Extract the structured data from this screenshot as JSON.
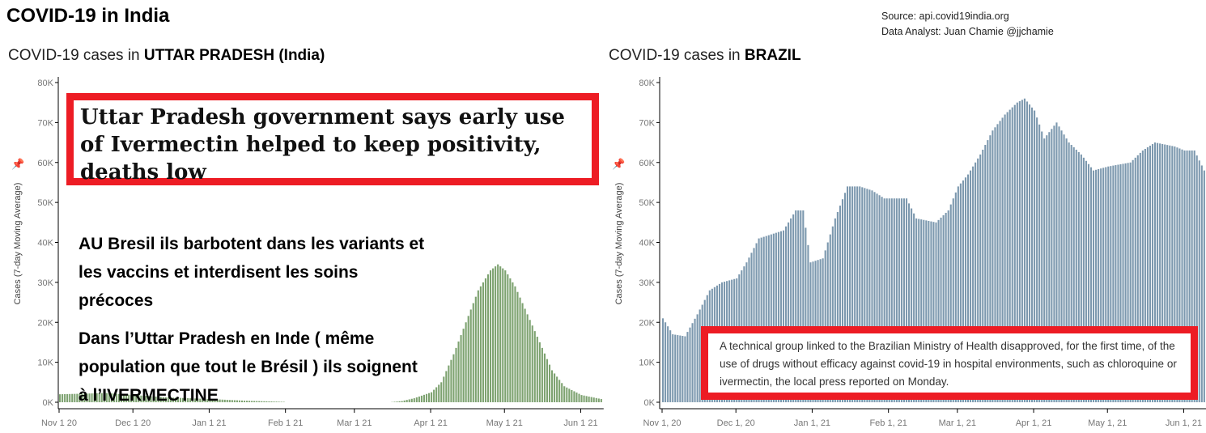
{
  "title": "COVID-19 in India",
  "source": {
    "line1": "Source: api.covid19india.org",
    "line2": "Data Analyst:  Juan Chamie @jjchamie"
  },
  "colors": {
    "india_bars": "#7da270",
    "brazil_bars": "#7c98ae",
    "annotation_border": "#ed1c24"
  },
  "annotations": {
    "up_headline": "Uttar Pradesh government says early use of Ivermectin helped to keep positivity, deaths low",
    "french_1": "AU Bresil ils barbotent dans les variants et les vaccins et interdisent les soins précoces",
    "french_2": "Dans l’Uttar Pradesh en Inde ( même population que tout le Brésil ) ils soignent à l’IVERMECTINE",
    "brazil_note": "A technical group linked to the Brazilian Ministry of Health disapproved, for the first time, of the use of drugs without efficacy against covid-19 in hospital environments, such as chloroquine or ivermectin, the local press reported on Monday."
  },
  "chart_data": [
    {
      "type": "bar",
      "title_prefix": "COVID-19 cases in ",
      "title_bold": "UTTAR PRADESH (India)",
      "ylabel": "Cases (7-day Moving Average)",
      "ylim": [
        0,
        80000
      ],
      "yticks": [
        "0K",
        "10K",
        "20K",
        "30K",
        "40K",
        "50K",
        "60K",
        "70K",
        "80K"
      ],
      "xticks": [
        "Nov 1 20",
        "Dec 1 20",
        "Jan 1 21",
        "Feb 1 21",
        "Mar 1 21",
        "Apr 1 21",
        "May 1 21",
        "Jun 1 21"
      ],
      "x_range": [
        "2020-11-01",
        "2021-06-09"
      ],
      "points": [
        [
          "2020-11-01",
          2000
        ],
        [
          "2020-11-20",
          2300
        ],
        [
          "2020-12-01",
          1800
        ],
        [
          "2020-12-15",
          1200
        ],
        [
          "2021-01-01",
          800
        ],
        [
          "2021-01-15",
          400
        ],
        [
          "2021-01-31",
          100
        ],
        [
          "2021-02-01",
          0
        ],
        [
          "2021-03-15",
          0
        ],
        [
          "2021-03-20",
          300
        ],
        [
          "2021-03-25",
          1000
        ],
        [
          "2021-04-01",
          2500
        ],
        [
          "2021-04-05",
          5000
        ],
        [
          "2021-04-10",
          12000
        ],
        [
          "2021-04-15",
          20000
        ],
        [
          "2021-04-20",
          28000
        ],
        [
          "2021-04-25",
          33000
        ],
        [
          "2021-04-28",
          34500
        ],
        [
          "2021-05-01",
          33000
        ],
        [
          "2021-05-05",
          29000
        ],
        [
          "2021-05-10",
          22000
        ],
        [
          "2021-05-15",
          15000
        ],
        [
          "2021-05-20",
          8000
        ],
        [
          "2021-05-25",
          4000
        ],
        [
          "2021-06-01",
          1800
        ],
        [
          "2021-06-09",
          800
        ]
      ]
    },
    {
      "type": "bar",
      "title_prefix": "COVID-19 cases in ",
      "title_bold": "BRAZIL",
      "ylabel": "Cases (7-day Moving Average)",
      "ylim": [
        0,
        80000
      ],
      "yticks": [
        "0K",
        "10K",
        "20K",
        "30K",
        "40K",
        "50K",
        "60K",
        "70K",
        "80K"
      ],
      "xticks": [
        "Nov 1, 20",
        "Dec 1, 20",
        "Jan 1, 21",
        "Feb 1, 21",
        "Mar 1, 21",
        "Apr 1, 21",
        "May 1, 21",
        "Jun 1, 21"
      ],
      "x_range": [
        "2020-11-01",
        "2021-06-09"
      ],
      "points": [
        [
          "2020-11-01",
          21000
        ],
        [
          "2020-11-05",
          17000
        ],
        [
          "2020-11-10",
          16500
        ],
        [
          "2020-11-15",
          22000
        ],
        [
          "2020-11-20",
          28000
        ],
        [
          "2020-11-25",
          30000
        ],
        [
          "2020-12-01",
          31000
        ],
        [
          "2020-12-05",
          35000
        ],
        [
          "2020-12-10",
          41000
        ],
        [
          "2020-12-15",
          42000
        ],
        [
          "2020-12-20",
          43000
        ],
        [
          "2020-12-25",
          48000
        ],
        [
          "2020-12-28",
          48000
        ],
        [
          "2020-12-31",
          35000
        ],
        [
          "2021-01-05",
          36000
        ],
        [
          "2021-01-10",
          46000
        ],
        [
          "2021-01-15",
          54000
        ],
        [
          "2021-01-20",
          54000
        ],
        [
          "2021-01-25",
          53000
        ],
        [
          "2021-01-30",
          51000
        ],
        [
          "2021-02-08",
          51000
        ],
        [
          "2021-02-12",
          46000
        ],
        [
          "2021-02-20",
          45000
        ],
        [
          "2021-02-25",
          48000
        ],
        [
          "2021-03-01",
          54000
        ],
        [
          "2021-03-05",
          57000
        ],
        [
          "2021-03-10",
          62000
        ],
        [
          "2021-03-15",
          68000
        ],
        [
          "2021-03-20",
          72000
        ],
        [
          "2021-03-25",
          75000
        ],
        [
          "2021-03-28",
          76000
        ],
        [
          "2021-04-01",
          73000
        ],
        [
          "2021-04-05",
          66000
        ],
        [
          "2021-04-10",
          70000
        ],
        [
          "2021-04-15",
          65000
        ],
        [
          "2021-04-20",
          62000
        ],
        [
          "2021-04-25",
          58000
        ],
        [
          "2021-05-01",
          59000
        ],
        [
          "2021-05-10",
          60000
        ],
        [
          "2021-05-15",
          63000
        ],
        [
          "2021-05-20",
          65000
        ],
        [
          "2021-05-28",
          64000
        ],
        [
          "2021-06-01",
          63000
        ],
        [
          "2021-06-05",
          63000
        ],
        [
          "2021-06-09",
          58000
        ]
      ]
    }
  ]
}
